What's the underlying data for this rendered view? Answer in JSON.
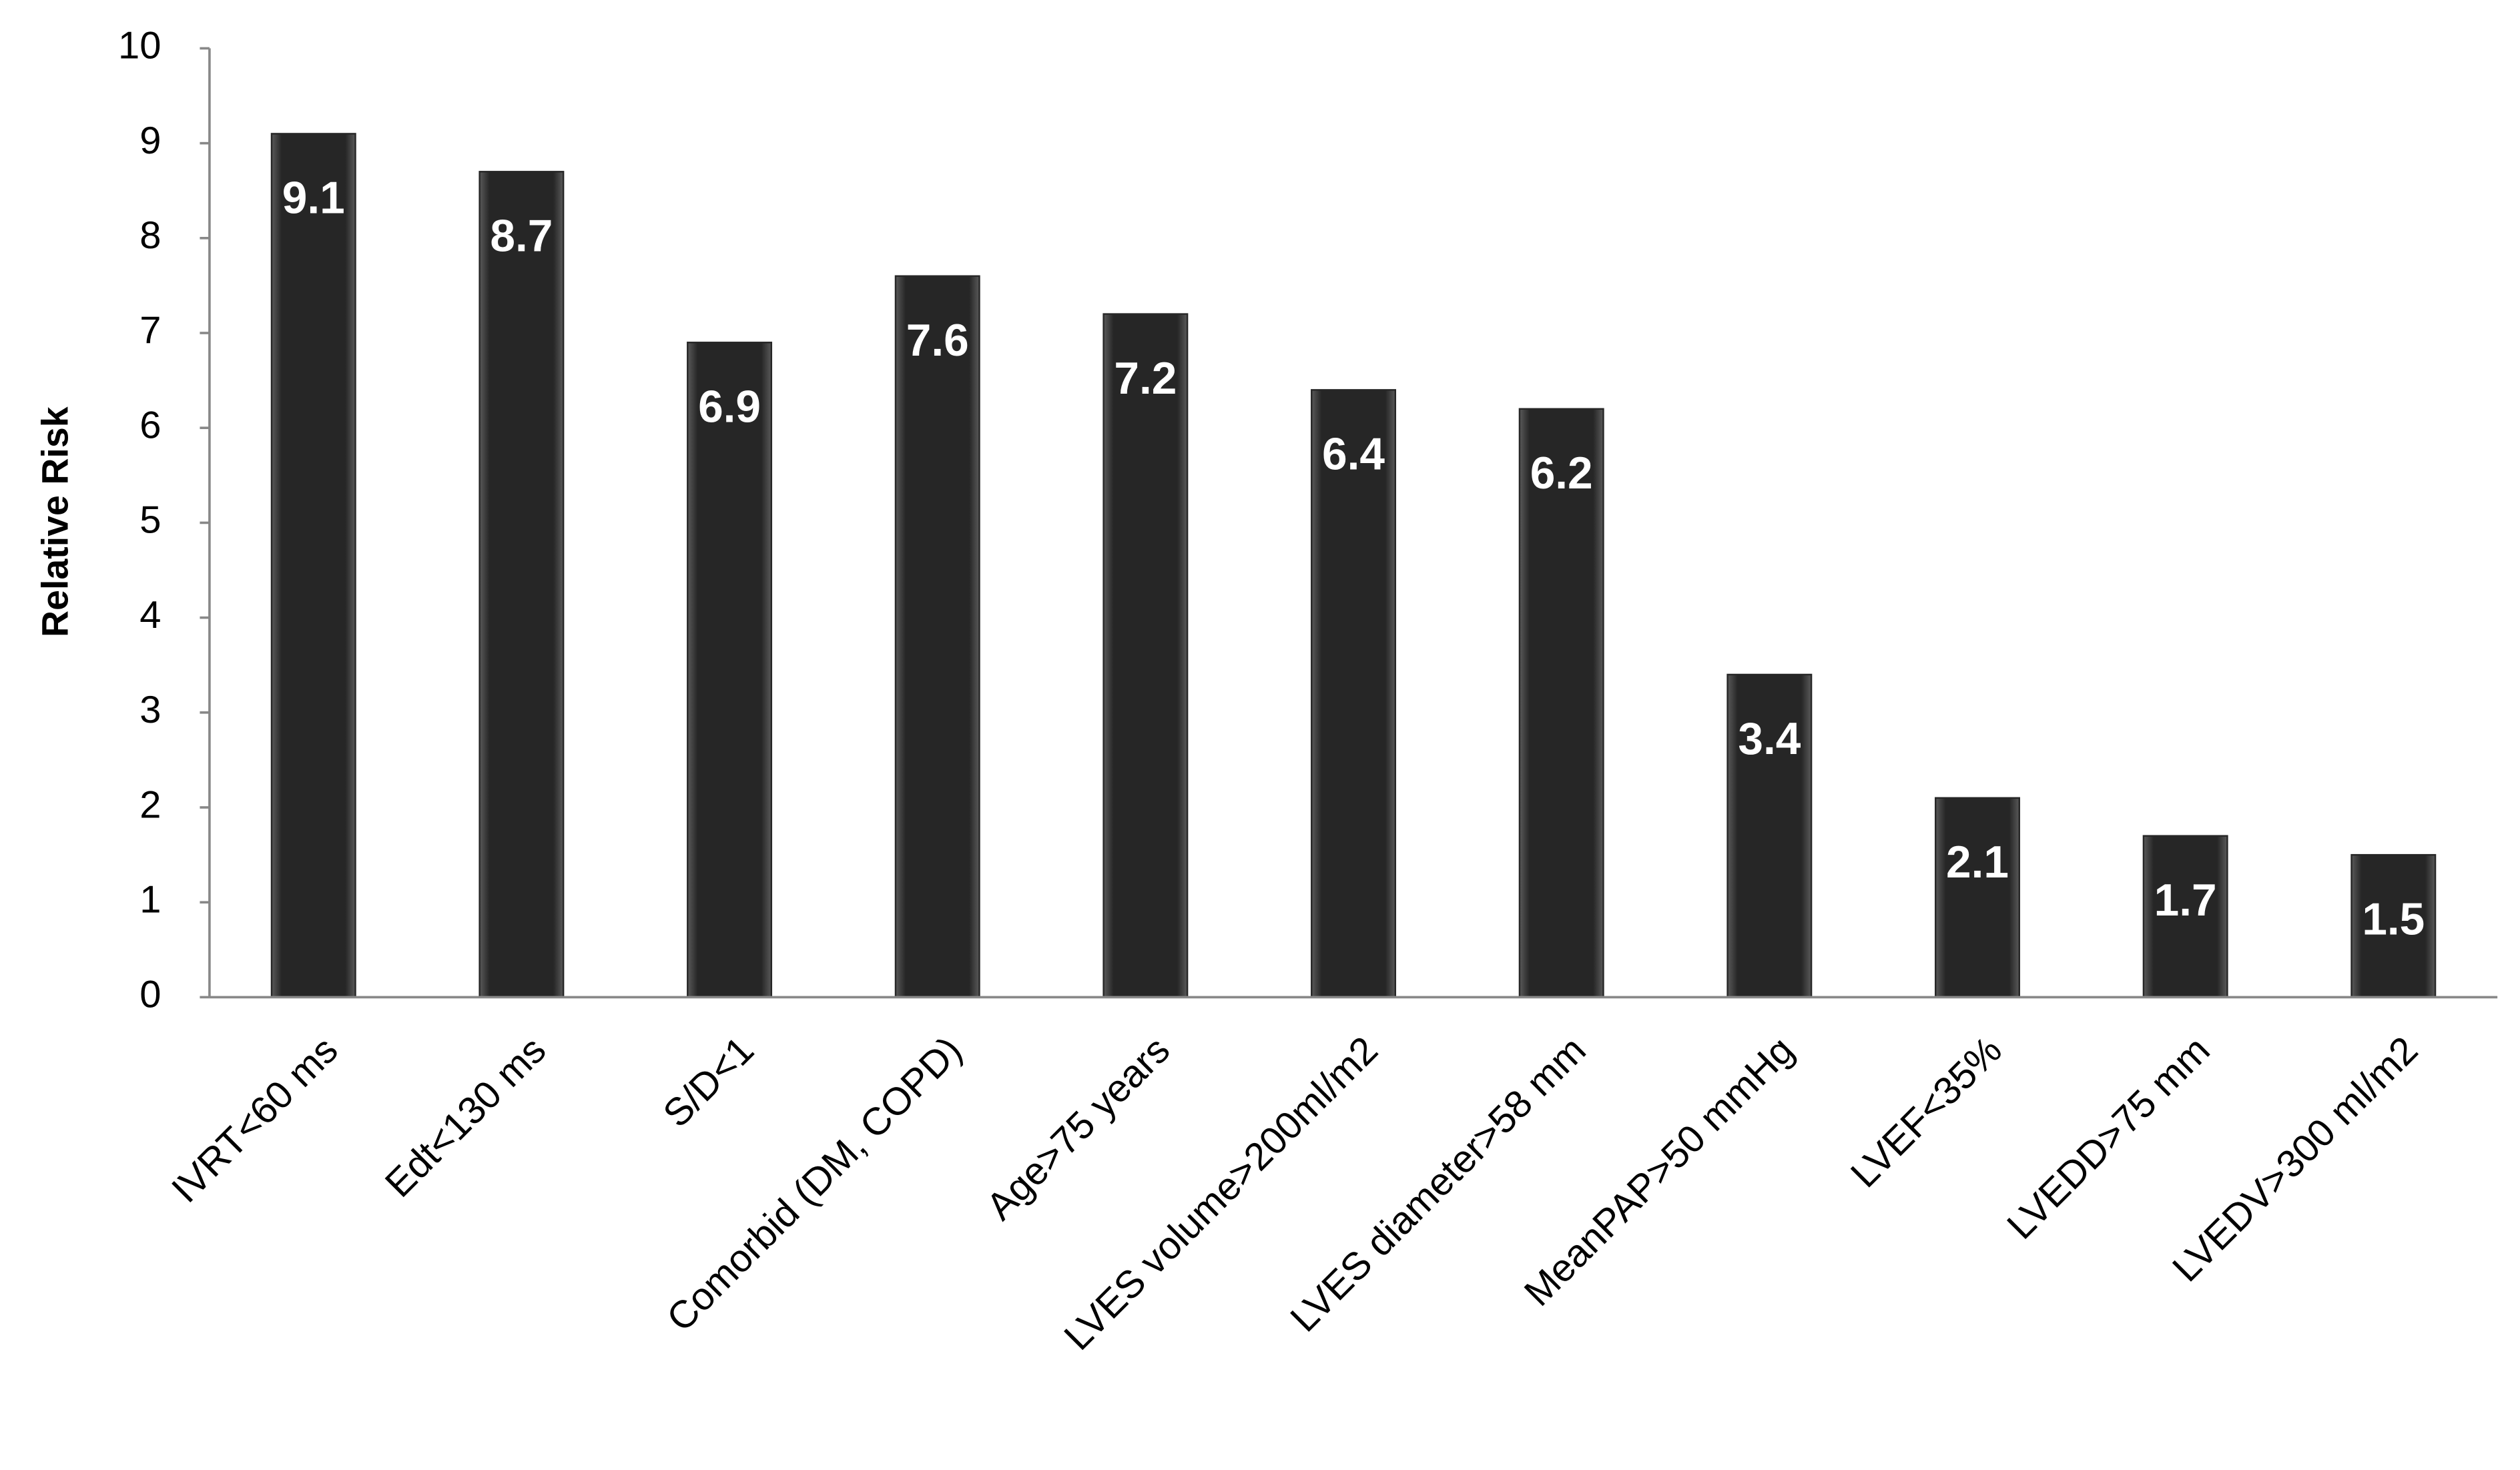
{
  "chart_data": {
    "type": "bar",
    "y_label": "Relative Risk",
    "categories": [
      "IVRT<60 ms",
      "Edt<130 ms",
      "S/D<1",
      "Comorbid (DM, COPD)",
      "Age>75 years",
      "LVES volume>200ml/m2",
      "LVES diameter>58 mm",
      "MeanPAP>50 mmHg",
      "LVEF<35%",
      "LVEDD>75 mm",
      "LVEDV>300 ml/m2"
    ],
    "values": [
      9.1,
      8.7,
      6.9,
      7.6,
      7.2,
      6.4,
      6.2,
      3.4,
      2.1,
      1.7,
      1.5
    ],
    "color": "#262626",
    "ylim": [
      0,
      10
    ],
    "yticks": [
      0,
      1,
      2,
      3,
      4,
      5,
      6,
      7,
      8,
      9,
      10
    ],
    "grid": false
  }
}
